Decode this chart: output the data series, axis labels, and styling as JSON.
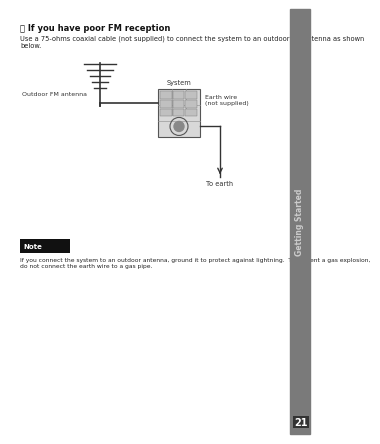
{
  "bg_color": "#ffffff",
  "sidebar_color": "#7a7a7a",
  "sidebar_text": "Getting Started",
  "sidebar_text_color": "#cccccc",
  "page_num": "21",
  "page_num_color": "#ffffff",
  "page_num_bg": "#333333",
  "title_icon": "⑂",
  "title_text": " If you have poor FM reception",
  "subtitle_text": "Use a 75-ohms coaxial cable (not supplied) to connect the system to an outdoor FM antenna as shown below.",
  "outdoor_antenna_label": "Outdoor FM antenna",
  "system_label": "System",
  "earth_wire_label": "Earth wire\n(not supplied)",
  "to_earth_label": "To earth",
  "note_label": "Note",
  "note_text": "If you connect the system to an outdoor antenna, ground it to protect against lightning.  To prevent a gas explosion,\ndo not connect the earth wire to a gas pipe."
}
